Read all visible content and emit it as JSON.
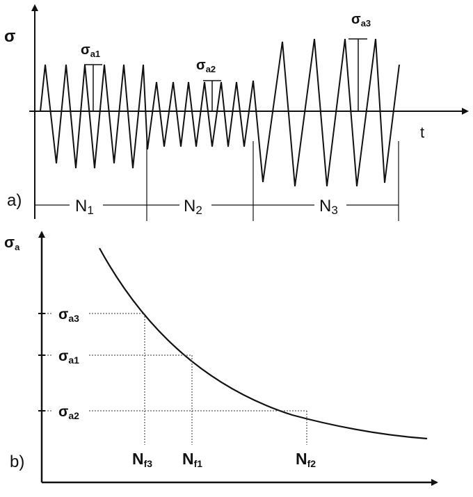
{
  "panel_a": {
    "label": "a)",
    "y_axis": "σ",
    "x_axis": "t",
    "amplitudes": [
      {
        "base": "σ",
        "sub": "a1"
      },
      {
        "base": "σ",
        "sub": "a2"
      },
      {
        "base": "σ",
        "sub": "a3"
      }
    ],
    "blocks": [
      {
        "base": "N",
        "sub": "1"
      },
      {
        "base": "N",
        "sub": "2"
      },
      {
        "base": "N",
        "sub": "3"
      }
    ]
  },
  "panel_b": {
    "label": "b)",
    "y_axis": {
      "base": "σ",
      "sub": "a"
    },
    "stress_levels": [
      {
        "base": "σ",
        "sub": "a3"
      },
      {
        "base": "σ",
        "sub": "a1"
      },
      {
        "base": "σ",
        "sub": "a2"
      }
    ],
    "lives": [
      {
        "base": "N",
        "sub": "f3"
      },
      {
        "base": "N",
        "sub": "f1"
      },
      {
        "base": "N",
        "sub": "f2"
      }
    ]
  }
}
